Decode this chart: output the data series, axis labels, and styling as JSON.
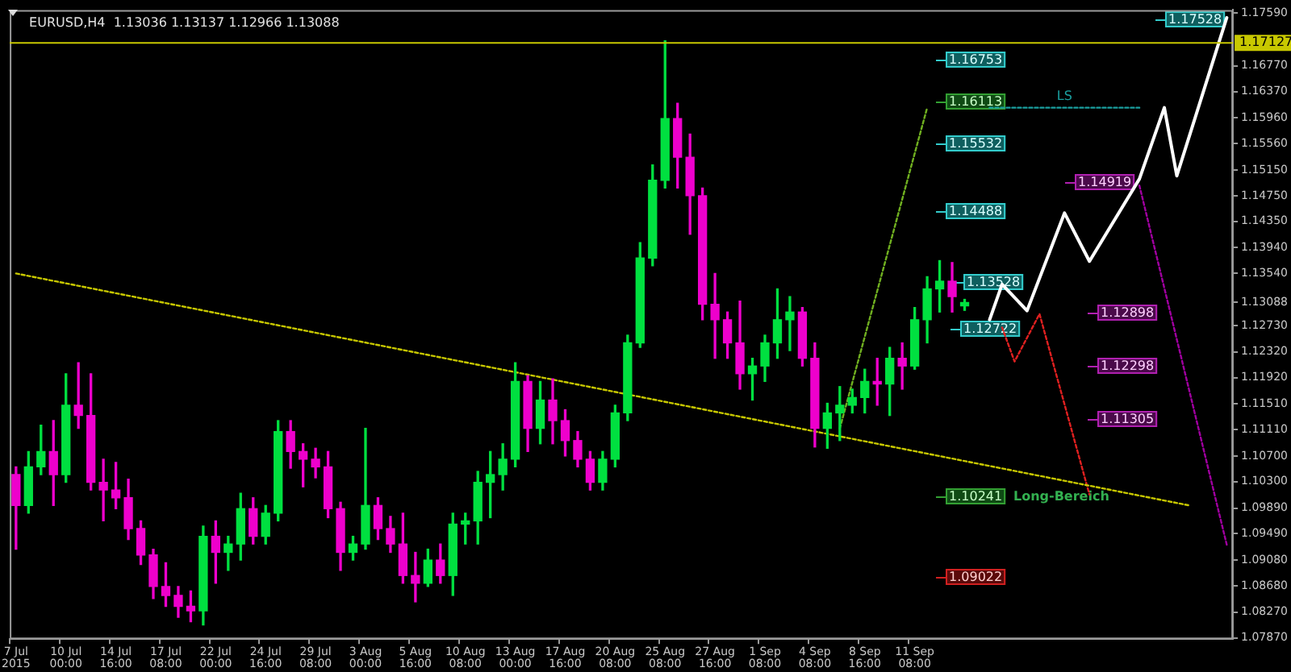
{
  "chart_data": {
    "type": "candlestick",
    "title": "EURUSD,H4  1.13036 1.13137 1.12966 1.13088",
    "categories": [
      "7 Jul 2015",
      null,
      null,
      null,
      "10 Jul 00:00",
      null,
      null,
      null,
      "14 Jul 16:00",
      null,
      null,
      null,
      "17 Jul 08:00",
      null,
      null,
      null,
      "22 Jul 00:00",
      null,
      null,
      null,
      "24 Jul 16:00",
      null,
      null,
      null,
      "29 Jul 08:00",
      null,
      null,
      null,
      "3 Aug 00:00",
      null,
      null,
      null,
      "5 Aug 16:00",
      null,
      null,
      null,
      "10 Aug 08:00",
      null,
      null,
      null,
      "13 Aug 00:00",
      null,
      null,
      null,
      "17 Aug 16:00",
      null,
      null,
      null,
      "20 Aug 08:00",
      null,
      null,
      null,
      "25 Aug 08:00",
      null,
      null,
      null,
      "27 Aug 16:00",
      null,
      null,
      null,
      "1 Sep 08:00",
      null,
      null,
      null,
      "4 Sep 08:00",
      null,
      null,
      null,
      "8 Sep 16:00",
      null,
      null,
      null,
      "11 Sep 08:00",
      null,
      null,
      null,
      null,
      null,
      null,
      null,
      null,
      null,
      null,
      null,
      null,
      null,
      null,
      null,
      null,
      null,
      null,
      null,
      null,
      null,
      null,
      null,
      null,
      null
    ],
    "ohlc": [
      [
        1.1041,
        1.1053,
        1.0925,
        1.0993
      ],
      [
        1.0993,
        1.1077,
        1.0981,
        1.1053
      ],
      [
        1.1053,
        1.1118,
        1.1041,
        1.1077
      ],
      [
        1.1077,
        1.1125,
        1.0993,
        1.1041
      ],
      [
        1.1041,
        1.1198,
        1.1029,
        1.1149
      ],
      [
        1.1149,
        1.1215,
        1.1113,
        1.1133
      ],
      [
        1.1133,
        1.1198,
        1.1017,
        1.1029
      ],
      [
        1.1029,
        1.1065,
        1.0969,
        1.1017
      ],
      [
        1.1017,
        1.106,
        1.0988,
        1.1005
      ],
      [
        1.1005,
        1.1034,
        1.094,
        1.0957
      ],
      [
        1.0957,
        1.0969,
        1.0901,
        1.0916
      ],
      [
        1.0916,
        1.0925,
        1.0848,
        1.0867
      ],
      [
        1.0867,
        1.0904,
        1.0836,
        1.0853
      ],
      [
        1.0853,
        1.0867,
        1.0819,
        1.0836
      ],
      [
        1.0836,
        1.086,
        1.0812,
        1.0829
      ],
      [
        1.0829,
        1.0961,
        1.0807,
        1.0945
      ],
      [
        1.0945,
        1.0969,
        1.0872,
        1.092
      ],
      [
        1.092,
        1.0945,
        1.0892,
        1.0933
      ],
      [
        1.0933,
        1.1012,
        1.0908,
        1.0988
      ],
      [
        1.0988,
        1.1005,
        1.0933,
        1.0945
      ],
      [
        1.0945,
        1.0993,
        1.0933,
        1.0981
      ],
      [
        1.0981,
        1.1125,
        1.0969,
        1.1108
      ],
      [
        1.1108,
        1.1125,
        1.1051,
        1.1077
      ],
      [
        1.1077,
        1.1089,
        1.1022,
        1.1065
      ],
      [
        1.1065,
        1.1082,
        1.1036,
        1.1053
      ],
      [
        1.1053,
        1.1077,
        1.0974,
        1.0988
      ],
      [
        1.0988,
        1.0998,
        1.0892,
        1.092
      ],
      [
        1.092,
        1.0945,
        1.0908,
        1.0933
      ],
      [
        1.0933,
        1.1113,
        1.0925,
        1.0993
      ],
      [
        1.0993,
        1.1005,
        1.094,
        1.0957
      ],
      [
        1.0957,
        1.0976,
        1.092,
        1.0933
      ],
      [
        1.0933,
        1.0981,
        1.0872,
        1.0884
      ],
      [
        1.0884,
        1.092,
        1.0843,
        1.0872
      ],
      [
        1.0872,
        1.0925,
        1.0867,
        1.0908
      ],
      [
        1.0908,
        1.0933,
        1.0872,
        1.0884
      ],
      [
        1.0884,
        1.0981,
        1.0853,
        1.0964
      ],
      [
        1.0964,
        1.0981,
        1.0933,
        1.0969
      ],
      [
        1.0969,
        1.1046,
        1.0933,
        1.1029
      ],
      [
        1.1029,
        1.1077,
        1.0974,
        1.1041
      ],
      [
        1.1041,
        1.1089,
        1.1017,
        1.1065
      ],
      [
        1.1065,
        1.1215,
        1.1053,
        1.1186
      ],
      [
        1.1186,
        1.1195,
        1.1077,
        1.1113
      ],
      [
        1.1113,
        1.1186,
        1.1089,
        1.1157
      ],
      [
        1.1157,
        1.119,
        1.1089,
        1.1125
      ],
      [
        1.1125,
        1.1142,
        1.107,
        1.1094
      ],
      [
        1.1094,
        1.1108,
        1.1053,
        1.1065
      ],
      [
        1.1065,
        1.1077,
        1.1017,
        1.1029
      ],
      [
        1.1029,
        1.1077,
        1.1017,
        1.1065
      ],
      [
        1.1065,
        1.1149,
        1.1053,
        1.1137
      ],
      [
        1.1137,
        1.1258,
        1.1125,
        1.1246
      ],
      [
        1.1246,
        1.1402,
        1.1239,
        1.1378
      ],
      [
        1.1378,
        1.1523,
        1.1366,
        1.1499
      ],
      [
        1.1499,
        1.1716,
        1.1487,
        1.1595
      ],
      [
        1.1595,
        1.1619,
        1.1487,
        1.1535
      ],
      [
        1.1535,
        1.1571,
        1.1415,
        1.1475
      ],
      [
        1.1475,
        1.1487,
        1.1282,
        1.1306
      ],
      [
        1.1306,
        1.1354,
        1.1222,
        1.1282
      ],
      [
        1.1282,
        1.1294,
        1.1222,
        1.1246
      ],
      [
        1.1246,
        1.1311,
        1.1174,
        1.1198
      ],
      [
        1.1198,
        1.1222,
        1.1157,
        1.121
      ],
      [
        1.121,
        1.1258,
        1.1186,
        1.1246
      ],
      [
        1.1246,
        1.133,
        1.1222,
        1.1282
      ],
      [
        1.1282,
        1.1318,
        1.1234,
        1.1294
      ],
      [
        1.1294,
        1.1301,
        1.121,
        1.1222
      ],
      [
        1.1222,
        1.1246,
        1.1084,
        1.1113
      ],
      [
        1.1113,
        1.1152,
        1.1082,
        1.1137
      ],
      [
        1.1137,
        1.1178,
        1.1094,
        1.1149
      ],
      [
        1.1149,
        1.1174,
        1.1137,
        1.1161
      ],
      [
        1.1161,
        1.1205,
        1.1137,
        1.1186
      ],
      [
        1.1186,
        1.1222,
        1.1149,
        1.1182
      ],
      [
        1.1182,
        1.1239,
        1.1133,
        1.1222
      ],
      [
        1.1222,
        1.1246,
        1.1174,
        1.121
      ],
      [
        1.121,
        1.1301,
        1.1205,
        1.1282
      ],
      [
        1.1282,
        1.1349,
        1.1246,
        1.133
      ],
      [
        1.133,
        1.1374,
        1.1294,
        1.1342
      ],
      [
        1.1342,
        1.1371,
        1.1294,
        1.1318
      ],
      [
        1.13036,
        1.13137,
        1.12966,
        1.13088
      ],
      null,
      null,
      null,
      null,
      null,
      null,
      null,
      null,
      null,
      null,
      null,
      null,
      null,
      null,
      null,
      null,
      null,
      null,
      null,
      null,
      null
    ],
    "colors": [
      "#ee00cc",
      "#00e040",
      "#00e040",
      "#ee00cc",
      "#00e040",
      "#ee00cc",
      "#ee00cc",
      "#ee00cc",
      "#ee00cc",
      "#ee00cc",
      "#ee00cc",
      "#ee00cc",
      "#ee00cc",
      "#ee00cc",
      "#ee00cc",
      "#00e040",
      "#ee00cc",
      "#00e040",
      "#00e040",
      "#ee00cc",
      "#00e040",
      "#00e040",
      "#ee00cc",
      "#ee00cc",
      "#ee00cc",
      "#ee00cc",
      "#ee00cc",
      "#00e040",
      "#00e040",
      "#ee00cc",
      "#ee00cc",
      "#ee00cc",
      "#ee00cc",
      "#00e040",
      "#ee00cc",
      "#00e040",
      "#00e040",
      "#00e040",
      "#00e040",
      "#00e040",
      "#00e040",
      "#ee00cc",
      "#00e040",
      "#ee00cc",
      "#ee00cc",
      "#ee00cc",
      "#ee00cc",
      "#00e040",
      "#00e040",
      "#00e040",
      "#00e040",
      "#00e040",
      "#00e040",
      "#ee00cc",
      "#ee00cc",
      "#ee00cc",
      "#ee00cc",
      "#ee00cc",
      "#ee00cc",
      "#00e040",
      "#00e040",
      "#00e040",
      "#00e040",
      "#ee00cc",
      "#ee00cc",
      "#00e040",
      "#00e040",
      "#00e040",
      "#00e040",
      "#ee00cc",
      "#00e040",
      "#ee00cc",
      "#00e040",
      "#00e040",
      "#00e040",
      "#ee00cc",
      "#00e040",
      null,
      null,
      null,
      null,
      null,
      null,
      null,
      null,
      null,
      null,
      null,
      null,
      null,
      null,
      null,
      null,
      null,
      null,
      null,
      null,
      null
    ],
    "series": [
      {
        "type": "line",
        "color": "#c8c800",
        "line_style": "dotted",
        "values": [
          1.1354,
          null,
          null,
          null,
          null,
          null,
          null,
          null,
          null,
          null,
          null,
          null,
          null,
          null,
          null,
          null,
          null,
          null,
          null,
          null,
          null,
          null,
          null,
          null,
          null,
          null,
          null,
          null,
          null,
          null,
          null,
          null,
          null,
          null,
          null,
          null,
          null,
          null,
          null,
          null,
          null,
          null,
          null,
          null,
          null,
          null,
          null,
          null,
          null,
          null,
          null,
          null,
          null,
          null,
          null,
          null,
          null,
          null,
          null,
          null,
          null,
          null,
          null,
          null,
          null,
          null,
          null,
          null,
          null,
          null,
          null,
          null,
          null,
          null,
          null,
          null,
          null,
          null,
          null,
          null,
          null,
          null,
          null,
          null,
          null,
          null,
          null,
          null,
          null,
          null,
          null,
          null,
          null,
          null,
          1.0993,
          null,
          null,
          null
        ]
      },
      {
        "type": "line",
        "color": "#70b020",
        "line_style": "dotted",
        "values": [
          null,
          null,
          null,
          null,
          null,
          null,
          null,
          null,
          null,
          null,
          null,
          null,
          null,
          null,
          null,
          null,
          null,
          null,
          null,
          null,
          null,
          null,
          null,
          null,
          null,
          null,
          null,
          null,
          null,
          null,
          null,
          null,
          null,
          null,
          null,
          null,
          null,
          null,
          null,
          null,
          null,
          null,
          null,
          null,
          null,
          null,
          null,
          null,
          null,
          null,
          null,
          null,
          null,
          null,
          null,
          null,
          null,
          null,
          null,
          null,
          null,
          null,
          null,
          null,
          null,
          null,
          1.1113,
          null,
          null,
          null,
          null,
          null,
          null,
          1.1612,
          null,
          null,
          null,
          null,
          null,
          null,
          null,
          null,
          null,
          null,
          null,
          null,
          null,
          null,
          null,
          null,
          null,
          null,
          null,
          null,
          null,
          null,
          null,
          null
        ]
      },
      {
        "type": "line",
        "name": "LS",
        "color": "#1aa0a0",
        "line_style": "dotted",
        "values": [
          null,
          null,
          null,
          null,
          null,
          null,
          null,
          null,
          null,
          null,
          null,
          null,
          null,
          null,
          null,
          null,
          null,
          null,
          null,
          null,
          null,
          null,
          null,
          null,
          null,
          null,
          null,
          null,
          null,
          null,
          null,
          null,
          null,
          null,
          null,
          null,
          null,
          null,
          null,
          null,
          null,
          null,
          null,
          null,
          null,
          null,
          null,
          null,
          null,
          null,
          null,
          null,
          null,
          null,
          null,
          null,
          null,
          null,
          null,
          null,
          null,
          null,
          null,
          null,
          null,
          null,
          null,
          null,
          null,
          null,
          null,
          null,
          null,
          null,
          null,
          null,
          null,
          null,
          1.1612,
          1.1612,
          1.1612,
          1.1612,
          1.1612,
          1.1612,
          1.1612,
          1.1612,
          1.1612,
          1.1612,
          1.1612,
          1.1612,
          1.1612,
          null,
          null,
          null,
          null,
          null,
          null,
          null
        ]
      },
      {
        "type": "line",
        "color": "#e02020",
        "line_style": "dotted",
        "values": [
          null,
          null,
          null,
          null,
          null,
          null,
          null,
          null,
          null,
          null,
          null,
          null,
          null,
          null,
          null,
          null,
          null,
          null,
          null,
          null,
          null,
          null,
          null,
          null,
          null,
          null,
          null,
          null,
          null,
          null,
          null,
          null,
          null,
          null,
          null,
          null,
          null,
          null,
          null,
          null,
          null,
          null,
          null,
          null,
          null,
          null,
          null,
          null,
          null,
          null,
          null,
          null,
          null,
          null,
          null,
          null,
          null,
          null,
          null,
          null,
          null,
          null,
          null,
          null,
          null,
          null,
          null,
          null,
          null,
          null,
          null,
          null,
          null,
          null,
          null,
          null,
          null,
          null,
          null,
          1.127,
          1.1217,
          null,
          1.1291,
          null,
          null,
          null,
          1.101,
          null,
          null,
          null,
          null,
          null,
          null,
          null,
          null,
          null,
          null,
          null
        ]
      },
      {
        "type": "line",
        "color": "#a000a0",
        "line_style": "dotted",
        "values": [
          null,
          null,
          null,
          null,
          null,
          null,
          null,
          null,
          null,
          null,
          null,
          null,
          null,
          null,
          null,
          null,
          null,
          null,
          null,
          null,
          null,
          null,
          null,
          null,
          null,
          null,
          null,
          null,
          null,
          null,
          null,
          null,
          null,
          null,
          null,
          null,
          null,
          null,
          null,
          null,
          null,
          null,
          null,
          null,
          null,
          null,
          null,
          null,
          null,
          null,
          null,
          null,
          null,
          null,
          null,
          null,
          null,
          null,
          null,
          null,
          null,
          null,
          null,
          null,
          null,
          null,
          null,
          null,
          null,
          null,
          null,
          null,
          null,
          null,
          null,
          null,
          null,
          null,
          null,
          null,
          null,
          null,
          null,
          null,
          null,
          null,
          null,
          null,
          null,
          null,
          1.1491,
          null,
          null,
          null,
          null,
          null,
          null,
          1.0932
        ]
      },
      {
        "type": "line",
        "color": "#ffffff",
        "line_style": "solid",
        "values": [
          null,
          null,
          null,
          null,
          null,
          null,
          null,
          null,
          null,
          null,
          null,
          null,
          null,
          null,
          null,
          null,
          null,
          null,
          null,
          null,
          null,
          null,
          null,
          null,
          null,
          null,
          null,
          null,
          null,
          null,
          null,
          null,
          null,
          null,
          null,
          null,
          null,
          null,
          null,
          null,
          null,
          null,
          null,
          null,
          null,
          null,
          null,
          null,
          null,
          null,
          null,
          null,
          null,
          null,
          null,
          null,
          null,
          null,
          null,
          null,
          null,
          null,
          null,
          null,
          null,
          null,
          null,
          null,
          null,
          null,
          null,
          null,
          null,
          null,
          null,
          null,
          null,
          null,
          1.1282,
          1.1337,
          null,
          1.1296,
          null,
          null,
          1.1448,
          null,
          1.1373,
          null,
          null,
          null,
          1.1501,
          null,
          1.1612,
          1.1506,
          null,
          null,
          null,
          1.1752
        ]
      }
    ],
    "ylim": [
      1.0785,
      1.1764
    ],
    "yticks": [
      {
        "value": 1.1759,
        "label": "1.17590"
      },
      {
        "value": 1.1677,
        "label": "1.16770"
      },
      {
        "value": 1.1637,
        "label": "1.16370"
      },
      {
        "value": 1.1596,
        "label": "1.15960"
      },
      {
        "value": 1.1556,
        "label": "1.15560"
      },
      {
        "value": 1.1515,
        "label": "1.15150"
      },
      {
        "value": 1.1475,
        "label": "1.14750"
      },
      {
        "value": 1.1435,
        "label": "1.14350"
      },
      {
        "value": 1.1394,
        "label": "1.13940"
      },
      {
        "value": 1.1354,
        "label": "1.13540"
      },
      1.13088,
      {
        "value": 1.1273,
        "label": "1.12730"
      },
      {
        "value": 1.1232,
        "label": "1.12320"
      },
      {
        "value": 1.1192,
        "label": "1.11920"
      },
      {
        "value": 1.1151,
        "label": "1.11510"
      },
      {
        "value": 1.1111,
        "label": "1.11110"
      },
      {
        "value": 1.107,
        "label": "1.10700"
      },
      {
        "value": 1.103,
        "label": "1.10300"
      },
      {
        "value": 1.0989,
        "label": "1.09890"
      },
      {
        "value": 1.0949,
        "label": "1.09490"
      },
      {
        "value": 1.0908,
        "label": "1.09080"
      },
      {
        "value": 1.0868,
        "label": "1.08680"
      },
      {
        "value": 1.0827,
        "label": "1.08270"
      },
      {
        "value": 1.0787,
        "label": "1.07870"
      }
    ],
    "ref_lines": [
      {
        "axis": "y",
        "value": 1.17127,
        "label": "1.17127",
        "color": "#c8c800",
        "line_style": "solid"
      }
    ],
    "annotations": [
      "1.17528",
      "1.16753",
      "1.16113",
      "1.15532",
      "1.14488",
      "1.13528",
      "1.12722",
      "1.14919",
      "1.12898",
      "1.12298",
      "1.11305",
      "1.10241",
      "Long-Bereich",
      "1.09022"
    ],
    "grid": false,
    "legend": false,
    "marker": "none"
  }
}
